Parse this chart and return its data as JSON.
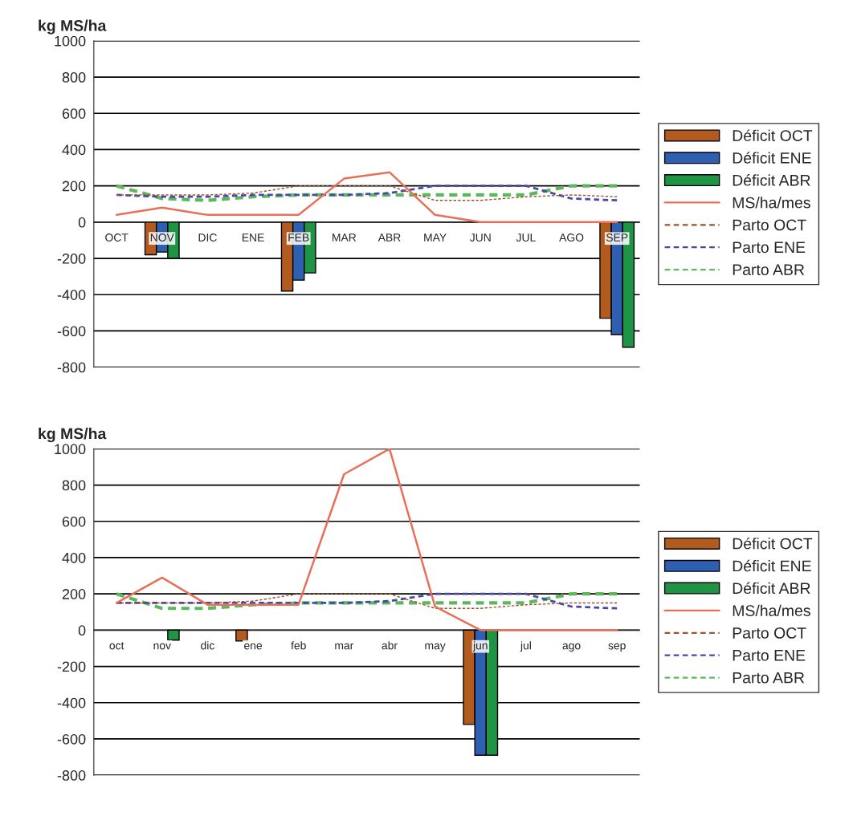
{
  "chart_data": [
    {
      "type": "bar",
      "ylabel": "kg MS/ha",
      "categories": [
        "OCT",
        "NOV",
        "DIC",
        "ENE",
        "FEB",
        "MAR",
        "ABR",
        "MAY",
        "JUN",
        "JUL",
        "AGO",
        "SEP"
      ],
      "ylim": [
        -800,
        1000
      ],
      "yticks": [
        -800,
        -600,
        -400,
        -200,
        0,
        200,
        400,
        600,
        800,
        1000
      ],
      "grid": "y",
      "legend": "right",
      "series": [
        {
          "name": "Déficit OCT",
          "color": "#b35a1f",
          "values": [
            null,
            -180,
            null,
            null,
            -380,
            null,
            null,
            null,
            null,
            null,
            null,
            -530
          ]
        },
        {
          "name": "Déficit ENE",
          "color": "#2e5fb0",
          "values": [
            null,
            -165,
            null,
            null,
            -320,
            null,
            null,
            null,
            null,
            null,
            null,
            -620
          ]
        },
        {
          "name": "Déficit ABR",
          "color": "#1e9444",
          "values": [
            null,
            -200,
            null,
            null,
            -280,
            null,
            null,
            null,
            null,
            null,
            null,
            -690
          ]
        },
        {
          "name": "MS/ha/mes",
          "type": "line",
          "line_style": "solid",
          "color": "#e8705a",
          "values": [
            40,
            80,
            40,
            40,
            40,
            240,
            275,
            40,
            0,
            0,
            0,
            0
          ]
        },
        {
          "name": "Parto OCT",
          "type": "line",
          "line_style": "dashed",
          "color": "#a0522d",
          "values": [
            150,
            150,
            150,
            160,
            200,
            200,
            200,
            120,
            120,
            140,
            150,
            140
          ]
        },
        {
          "name": "Parto ENE",
          "type": "line",
          "line_style": "dashed",
          "color": "#4848a8",
          "values": [
            150,
            140,
            140,
            150,
            150,
            150,
            160,
            200,
            200,
            200,
            130,
            120
          ]
        },
        {
          "name": "Parto ABR",
          "type": "line",
          "line_style": "dashed",
          "color": "#5cb85c",
          "values": [
            200,
            130,
            120,
            140,
            150,
            150,
            150,
            150,
            150,
            150,
            200,
            200
          ]
        }
      ]
    },
    {
      "type": "bar",
      "ylabel": "kg MS/ha",
      "categories": [
        "oct",
        "nov",
        "dic",
        "ene",
        "feb",
        "mar",
        "abr",
        "may",
        "jun",
        "jul",
        "ago",
        "sep"
      ],
      "ylim": [
        -800,
        1000
      ],
      "yticks": [
        -800,
        -600,
        -400,
        -200,
        0,
        200,
        400,
        600,
        800,
        1000
      ],
      "grid": "y",
      "legend": "right",
      "series": [
        {
          "name": "Déficit OCT",
          "color": "#b35a1f",
          "values": [
            null,
            null,
            null,
            -60,
            null,
            null,
            null,
            null,
            -520,
            null,
            null,
            null
          ]
        },
        {
          "name": "Déficit ENE",
          "color": "#2e5fb0",
          "values": [
            null,
            null,
            null,
            null,
            null,
            null,
            null,
            null,
            -690,
            null,
            null,
            null
          ]
        },
        {
          "name": "Déficit ABR",
          "color": "#1e9444",
          "values": [
            null,
            -55,
            null,
            null,
            null,
            null,
            null,
            null,
            -690,
            null,
            null,
            null
          ]
        },
        {
          "name": "MS/ha/mes",
          "type": "line",
          "line_style": "solid",
          "color": "#e8705a",
          "values": [
            150,
            290,
            140,
            140,
            140,
            860,
            1000,
            130,
            0,
            0,
            0,
            0
          ]
        },
        {
          "name": "Parto OCT",
          "type": "line",
          "line_style": "dashed",
          "color": "#a0522d",
          "values": [
            150,
            150,
            150,
            160,
            200,
            200,
            200,
            120,
            120,
            140,
            150,
            150
          ]
        },
        {
          "name": "Parto ENE",
          "type": "line",
          "line_style": "dashed",
          "color": "#4848a8",
          "values": [
            150,
            150,
            150,
            150,
            150,
            150,
            160,
            200,
            200,
            200,
            130,
            120
          ]
        },
        {
          "name": "Parto ABR",
          "type": "line",
          "line_style": "dashed",
          "color": "#5cb85c",
          "values": [
            200,
            120,
            120,
            140,
            150,
            150,
            150,
            150,
            150,
            150,
            200,
            200
          ]
        }
      ]
    }
  ]
}
